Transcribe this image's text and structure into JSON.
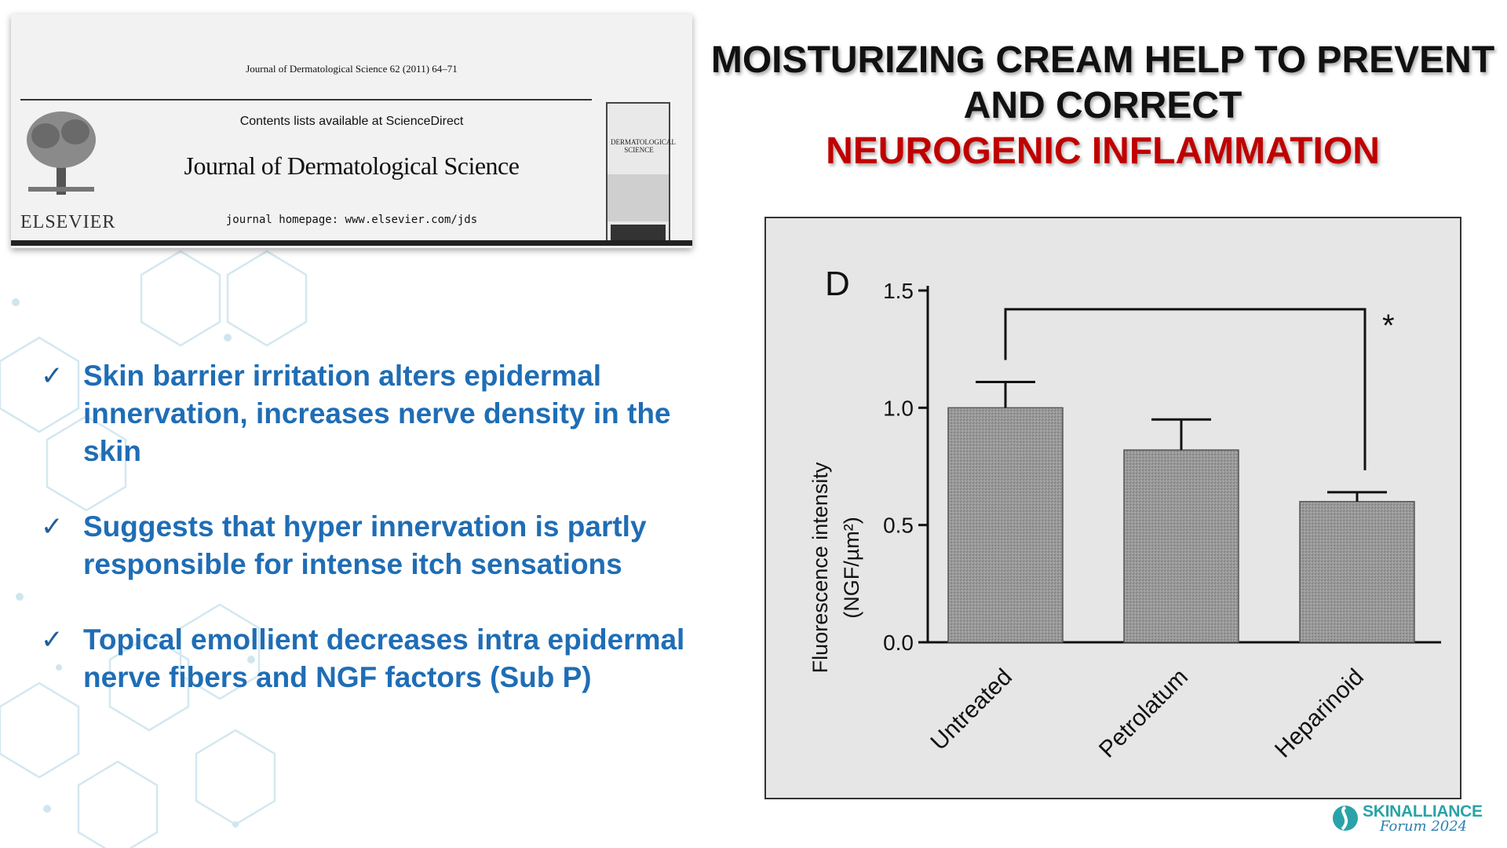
{
  "journal": {
    "citation": "Journal of Dermatological Science 62 (2011) 64–71",
    "contents": "Contents lists available at ScienceDirect",
    "name": "Journal of Dermatological Science",
    "homepage": "journal homepage: www.elsevier.com/jds",
    "publisher": "ELSEVIER",
    "cover_title": "DERMATOLOGICAL SCIENCE"
  },
  "title": {
    "line1": "MOISTURIZING CREAM HELP TO PREVENT",
    "line2": "AND CORRECT",
    "line3": "NEUROGENIC INFLAMMATION"
  },
  "bullets": [
    {
      "check": "✓",
      "text": "Skin barrier irritation alters epidermal innervation, increases nerve density in the skin"
    },
    {
      "check": "✓",
      "text": "Suggests that hyper innervation is partly responsible for intense itch sensations"
    },
    {
      "check": "✓",
      "text": "Topical emollient decreases intra epidermal nerve fibers and NGF factors (Sub P)"
    }
  ],
  "colors": {
    "title_black": "#111111",
    "title_red": "#c00000",
    "bullet_blue": "#1f6db5",
    "bar_fill": "#9a9a9a",
    "chart_bg": "#e6e6e6"
  },
  "chart_data": {
    "type": "bar",
    "panel_label": "D",
    "categories": [
      "Untreated",
      "Petrolatum",
      "Heparinoid"
    ],
    "values": [
      1.0,
      0.82,
      0.6
    ],
    "errors": [
      0.11,
      0.13,
      0.04
    ],
    "ylabel_line1": "Fluorescence intensity",
    "ylabel_line2": "(NGF/µm²)",
    "ylim": [
      0,
      1.5
    ],
    "yticks": [
      0.0,
      0.5,
      1.0,
      1.5
    ],
    "ytick_labels": [
      "0.0",
      "0.5",
      "1.0",
      "1.5"
    ],
    "significance": {
      "from": "Untreated",
      "to": "Heparinoid",
      "label": "*"
    },
    "grid": false
  },
  "logo": {
    "name": "SKINALLIANCE",
    "sub": "Forum 2024"
  }
}
